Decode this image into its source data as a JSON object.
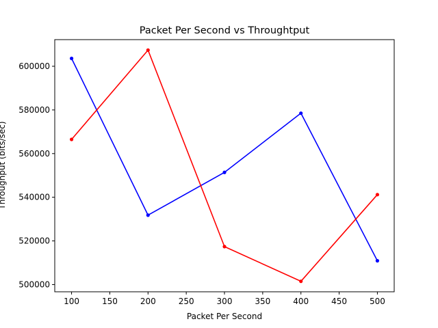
{
  "chart_data": {
    "type": "line",
    "title": "Packet Per Second vs Throughtput",
    "xlabel": "Packet Per Second",
    "ylabel": "Throughput (bits/sec)",
    "x": [
      100,
      200,
      300,
      400,
      500
    ],
    "xlim": [
      78,
      522
    ],
    "ylim": [
      496700,
      612200
    ],
    "xticks": [
      100,
      150,
      200,
      250,
      300,
      350,
      400,
      450,
      500
    ],
    "yticks": [
      500000,
      520000,
      540000,
      560000,
      580000,
      600000
    ],
    "grid": false,
    "series": [
      {
        "color": "#0000ff",
        "marker": "dot",
        "values": [
          603600,
          531800,
          551400,
          578500,
          510900
        ]
      },
      {
        "color": "#ff0000",
        "marker": "dot",
        "values": [
          566500,
          607400,
          517400,
          501500,
          541200
        ]
      }
    ]
  }
}
